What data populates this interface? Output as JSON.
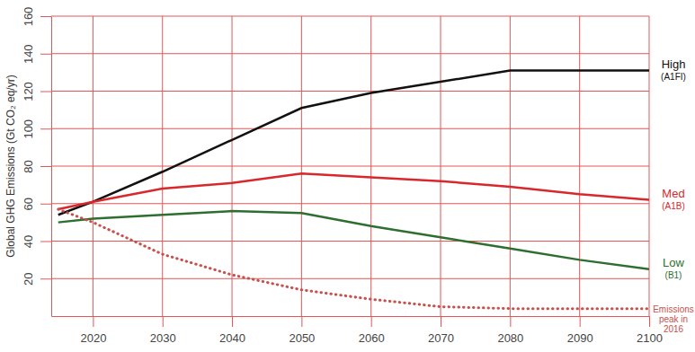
{
  "chart_data": {
    "type": "line",
    "y_label": "Global GHG Emissions (Gt CO₂ eq/yr)",
    "x": [
      2015,
      2020,
      2030,
      2040,
      2050,
      2060,
      2070,
      2080,
      2090,
      2100
    ],
    "series": [
      {
        "name": "High",
        "code": "(A1FI)",
        "color": "#111111",
        "line_style": "solid",
        "values": [
          54,
          61,
          77,
          94,
          111,
          119,
          125,
          131,
          131,
          131
        ]
      },
      {
        "name": "Med",
        "code": "(A1B)",
        "color": "#d9282c",
        "line_style": "solid",
        "values": [
          57,
          61,
          68,
          71,
          76,
          74,
          72,
          69,
          65,
          62
        ]
      },
      {
        "name": "Low",
        "code": "(B1)",
        "color": "#2e6e30",
        "line_style": "solid",
        "values": [
          50,
          52,
          54,
          56,
          55,
          48,
          42,
          36,
          30,
          25
        ]
      },
      {
        "name": "Emissions peak in 2016",
        "color": "#c8504c",
        "line_style": "dotted",
        "values": [
          57,
          50,
          33,
          22,
          14,
          9,
          5,
          4,
          4,
          4
        ]
      }
    ],
    "xlim": [
      2014,
      2100
    ],
    "xticks": [
      2020,
      2030,
      2040,
      2050,
      2060,
      2070,
      2080,
      2090,
      2100
    ],
    "ylim": [
      0,
      160
    ],
    "yticks": [
      20,
      40,
      60,
      80,
      100,
      120,
      140,
      160
    ],
    "grid": true
  }
}
